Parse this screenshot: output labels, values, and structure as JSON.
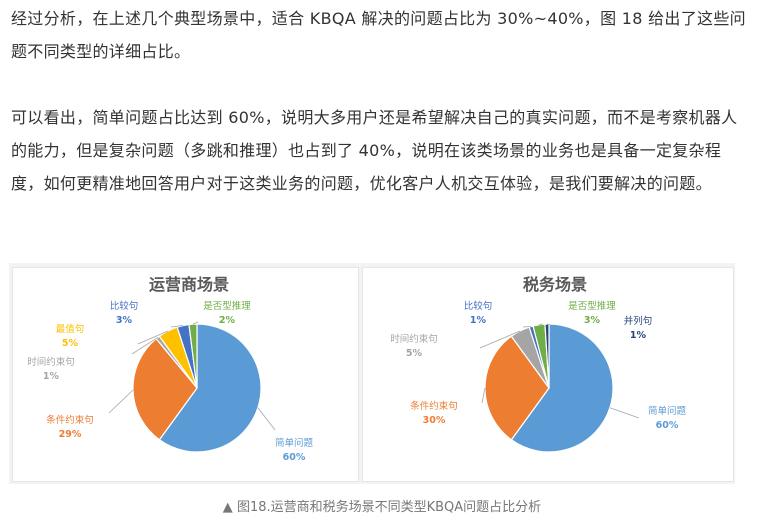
{
  "article": {
    "paragraph1": "经过分析，在上述几个典型场景中，适合 KBQA 解决的问题占比为 30%~40%，图 18 给出了这些问题不同类型的详细占比。",
    "paragraph2": "可以看出，简单问题占比达到 60%，说明大多用户还是希望解决自己的真实问题，而不是考察机器人的能力，但是复杂问题（多跳和推理）也占到了 40%，说明在该类场景的业务也是具备一定复杂程度，如何更精准地回答用户对于这类业务的问题，优化客户人机交互体验，是我们要解决的问题。"
  },
  "chart_data": [
    {
      "type": "pie",
      "title": "运营商场景",
      "categories": [
        "简单问题",
        "条件约束句",
        "时间约束句",
        "最值句",
        "比较句",
        "是否型推理"
      ],
      "values": [
        60,
        29,
        1,
        5,
        3,
        2
      ],
      "labels": [
        "60%",
        "29%",
        "1%",
        "5%",
        "3%",
        "2%"
      ],
      "colors": [
        "#5b9bd5",
        "#ed7d31",
        "#a5a5a5",
        "#ffc000",
        "#4472c4",
        "#70ad47"
      ]
    },
    {
      "type": "pie",
      "title": "税务场景",
      "categories": [
        "简单问题",
        "条件约束句",
        "时间约束句",
        "比较句",
        "是否型推理",
        "并列句"
      ],
      "values": [
        60,
        30,
        5,
        1,
        3,
        1
      ],
      "labels": [
        "60%",
        "30%",
        "5%",
        "1%",
        "3%",
        "1%"
      ],
      "colors": [
        "#5b9bd5",
        "#ed7d31",
        "#a5a5a5",
        "#4472c4",
        "#70ad47",
        "#264478"
      ]
    }
  ],
  "caption": {
    "marker": "▲",
    "text": "图18.运营商和税务场景不同类型KBQA问题占比分析"
  }
}
